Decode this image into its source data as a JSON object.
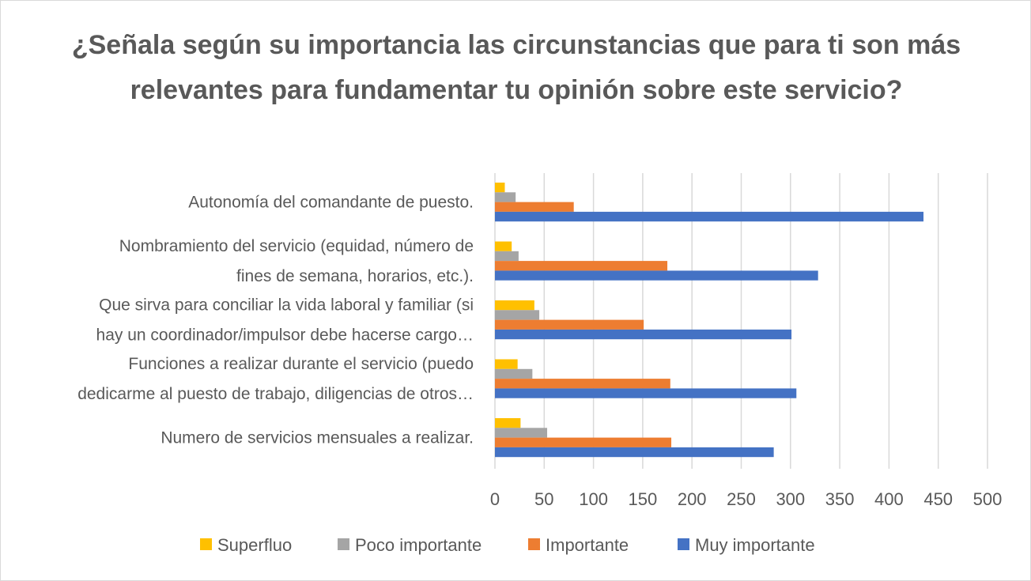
{
  "chart_data": {
    "type": "bar",
    "orientation": "horizontal",
    "title": "¿Señala según su importancia las circunstancias que para ti son más relevantes para fundamentar tu opinión sobre este servicio?",
    "categories": [
      "Autonomía del comandante de puesto.",
      "Nombramiento del servicio (equidad, número de fines de semana, horarios, etc.).",
      "Que sirva para conciliar la vida laboral y familiar (si hay un coordinador/impulsor debe hacerse cargo…",
      "Funciones a realizar durante el servicio (puedo dedicarme al puesto de trabajo, diligencias de otros…",
      "Numero de servicios mensuales a realizar."
    ],
    "category_lines": [
      [
        "Autonomía del comandante de puesto."
      ],
      [
        "Nombramiento del servicio (equidad, número de",
        "fines de semana, horarios, etc.)."
      ],
      [
        "Que sirva para conciliar la vida laboral y familiar (si",
        "hay un coordinador/impulsor debe hacerse cargo…"
      ],
      [
        "Funciones a realizar durante el servicio (puedo",
        "dedicarme al puesto de trabajo, diligencias de otros…"
      ],
      [
        "Numero de servicios mensuales a realizar."
      ]
    ],
    "series": [
      {
        "name": "Superfluo",
        "color": "#FFC000",
        "values": [
          10,
          17,
          40,
          23,
          26
        ]
      },
      {
        "name": "Poco importante",
        "color": "#A5A5A5",
        "values": [
          21,
          24,
          45,
          38,
          53
        ]
      },
      {
        "name": "Importante",
        "color": "#ED7D31",
        "values": [
          80,
          175,
          151,
          178,
          179
        ]
      },
      {
        "name": "Muy importante",
        "color": "#4472C4",
        "values": [
          435,
          328,
          301,
          306,
          283
        ]
      }
    ],
    "xlim": [
      0,
      500
    ],
    "xticks": [
      "0",
      "50",
      "100",
      "150",
      "200",
      "250",
      "300",
      "350",
      "400",
      "450",
      "500"
    ],
    "grid": true,
    "legend_position": "bottom"
  }
}
